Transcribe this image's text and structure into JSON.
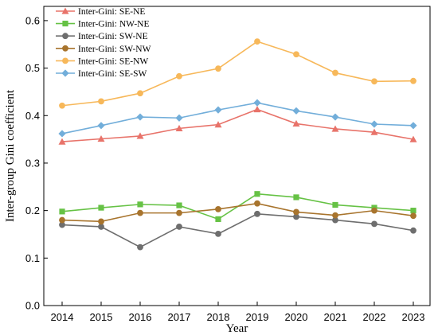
{
  "chart_data": {
    "type": "line",
    "xlabel": "Year",
    "ylabel": "Inter-group Gini coefficient",
    "x": [
      2014,
      2015,
      2016,
      2017,
      2018,
      2019,
      2020,
      2021,
      2022,
      2023
    ],
    "x_tick_labels": [
      "2014",
      "2015",
      "2016",
      "2017",
      "2018",
      "2019",
      "2020",
      "2021",
      "2022",
      "2023"
    ],
    "ylim": [
      0.0,
      0.63
    ],
    "y_ticks": [
      0.0,
      0.1,
      0.2,
      0.3,
      0.4,
      0.5,
      0.6
    ],
    "y_tick_labels": [
      "0.0",
      "0.1",
      "0.2",
      "0.3",
      "0.4",
      "0.5",
      "0.6"
    ],
    "grid": false,
    "legend_position": "top-left",
    "series": [
      {
        "name": "Inter-Gini: SE-NE",
        "color": "#E8736A",
        "marker": "triangle",
        "values": [
          0.345,
          0.351,
          0.357,
          0.373,
          0.381,
          0.413,
          0.383,
          0.372,
          0.365,
          0.35
        ]
      },
      {
        "name": "Inter-Gini: NW-NE",
        "color": "#66C245",
        "marker": "square",
        "values": [
          0.198,
          0.206,
          0.213,
          0.211,
          0.182,
          0.235,
          0.228,
          0.212,
          0.206,
          0.2
        ]
      },
      {
        "name": "Inter-Gini: SW-NE",
        "color": "#6E6E6E",
        "marker": "circle",
        "values": [
          0.17,
          0.166,
          0.123,
          0.166,
          0.151,
          0.193,
          0.187,
          0.18,
          0.172,
          0.158
        ]
      },
      {
        "name": "Inter-Gini: SW-NW",
        "color": "#A8742D",
        "marker": "circle",
        "values": [
          0.18,
          0.177,
          0.195,
          0.195,
          0.203,
          0.215,
          0.197,
          0.19,
          0.2,
          0.189
        ]
      },
      {
        "name": "Inter-Gini: SE-NW",
        "color": "#F7B85A",
        "marker": "circle",
        "values": [
          0.421,
          0.43,
          0.447,
          0.483,
          0.499,
          0.556,
          0.529,
          0.49,
          0.472,
          0.473
        ]
      },
      {
        "name": "Inter-Gini: SE-SW",
        "color": "#72AEDA",
        "marker": "diamond",
        "values": [
          0.362,
          0.379,
          0.397,
          0.395,
          0.412,
          0.427,
          0.41,
          0.397,
          0.382,
          0.379
        ]
      }
    ]
  }
}
